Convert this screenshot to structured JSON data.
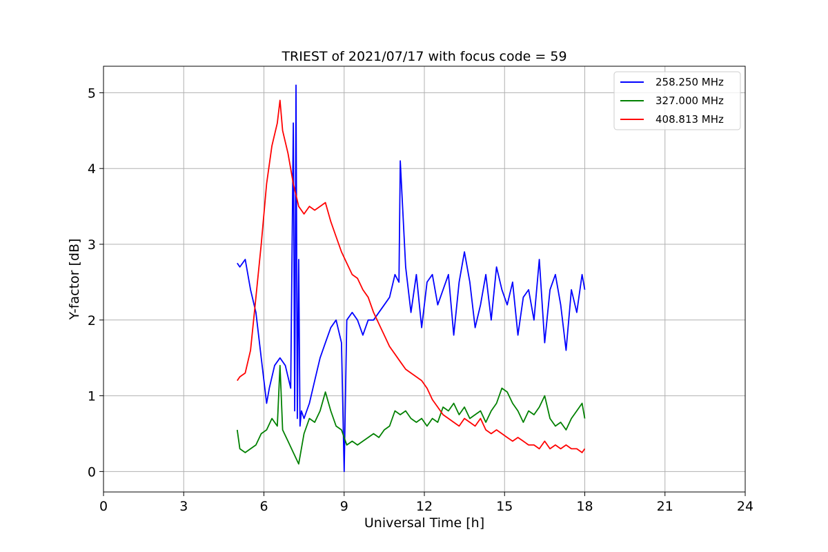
{
  "chart_data": {
    "type": "line",
    "title": "TRIEST of 2021/07/17 with focus code = 59",
    "xlabel": "Universal Time [h]",
    "ylabel": "Y-factor [dB]",
    "xlim": [
      0,
      24
    ],
    "ylim": [
      -0.27,
      5.35
    ],
    "xticks": [
      0,
      3,
      6,
      9,
      12,
      15,
      18,
      21,
      24
    ],
    "xtick_labels": [
      "0",
      "3",
      "6",
      "9",
      "12",
      "15",
      "18",
      "21",
      "24"
    ],
    "yticks": [
      0,
      1,
      2,
      3,
      4,
      5
    ],
    "ytick_labels": [
      "0",
      "1",
      "2",
      "3",
      "4",
      "5"
    ],
    "grid": true,
    "legend_position": "top-right",
    "series": [
      {
        "name": "258.250 MHz",
        "color": "#0000ff",
        "x": [
          5.0,
          5.1,
          5.3,
          5.5,
          5.7,
          5.9,
          6.1,
          6.2,
          6.4,
          6.6,
          6.8,
          7.0,
          7.1,
          7.15,
          7.2,
          7.25,
          7.3,
          7.35,
          7.4,
          7.5,
          7.7,
          7.9,
          8.1,
          8.3,
          8.5,
          8.7,
          8.9,
          9.0,
          9.1,
          9.3,
          9.5,
          9.7,
          9.9,
          10.1,
          10.3,
          10.5,
          10.7,
          10.9,
          11.05,
          11.1,
          11.3,
          11.5,
          11.7,
          11.9,
          12.1,
          12.3,
          12.5,
          12.7,
          12.9,
          13.1,
          13.3,
          13.5,
          13.7,
          13.9,
          14.1,
          14.3,
          14.5,
          14.7,
          14.9,
          15.1,
          15.3,
          15.5,
          15.7,
          15.9,
          16.1,
          16.3,
          16.5,
          16.7,
          16.9,
          17.1,
          17.3,
          17.5,
          17.7,
          17.9,
          18.0
        ],
        "y": [
          2.75,
          2.7,
          2.8,
          2.4,
          2.1,
          1.5,
          0.9,
          1.1,
          1.4,
          1.5,
          1.4,
          1.1,
          4.6,
          0.8,
          5.1,
          0.7,
          2.8,
          0.6,
          0.8,
          0.7,
          0.9,
          1.2,
          1.5,
          1.7,
          1.9,
          2.0,
          1.7,
          0.0,
          2.0,
          2.1,
          2.0,
          1.8,
          2.0,
          2.0,
          2.1,
          2.2,
          2.3,
          2.6,
          2.5,
          4.1,
          2.7,
          2.1,
          2.6,
          1.9,
          2.5,
          2.6,
          2.2,
          2.4,
          2.6,
          1.8,
          2.5,
          2.9,
          2.5,
          1.9,
          2.2,
          2.6,
          2.0,
          2.7,
          2.4,
          2.2,
          2.5,
          1.8,
          2.3,
          2.4,
          2.0,
          2.8,
          1.7,
          2.4,
          2.6,
          2.2,
          1.6,
          2.4,
          2.1,
          2.6,
          2.4
        ]
      },
      {
        "name": "327.000 MHz",
        "color": "#008000",
        "x": [
          5.0,
          5.1,
          5.3,
          5.5,
          5.7,
          5.9,
          6.1,
          6.3,
          6.5,
          6.6,
          6.7,
          6.9,
          7.1,
          7.3,
          7.5,
          7.7,
          7.9,
          8.1,
          8.3,
          8.5,
          8.7,
          8.9,
          9.1,
          9.3,
          9.5,
          9.7,
          9.9,
          10.1,
          10.3,
          10.5,
          10.7,
          10.9,
          11.1,
          11.3,
          11.5,
          11.7,
          11.9,
          12.1,
          12.3,
          12.5,
          12.7,
          12.9,
          13.1,
          13.3,
          13.5,
          13.7,
          13.9,
          14.1,
          14.3,
          14.5,
          14.7,
          14.9,
          15.1,
          15.3,
          15.5,
          15.7,
          15.9,
          16.1,
          16.3,
          16.5,
          16.7,
          16.9,
          17.1,
          17.3,
          17.5,
          17.7,
          17.9,
          18.0
        ],
        "y": [
          0.55,
          0.3,
          0.25,
          0.3,
          0.35,
          0.5,
          0.55,
          0.7,
          0.6,
          1.4,
          0.55,
          0.4,
          0.25,
          0.1,
          0.5,
          0.7,
          0.65,
          0.8,
          1.05,
          0.8,
          0.6,
          0.55,
          0.35,
          0.4,
          0.35,
          0.4,
          0.45,
          0.5,
          0.45,
          0.55,
          0.6,
          0.8,
          0.75,
          0.8,
          0.7,
          0.65,
          0.7,
          0.6,
          0.7,
          0.65,
          0.85,
          0.8,
          0.9,
          0.75,
          0.85,
          0.7,
          0.75,
          0.8,
          0.65,
          0.8,
          0.9,
          1.1,
          1.05,
          0.9,
          0.8,
          0.65,
          0.8,
          0.75,
          0.85,
          1.0,
          0.7,
          0.6,
          0.65,
          0.55,
          0.7,
          0.8,
          0.9,
          0.7
        ]
      },
      {
        "name": "408.813 MHz",
        "color": "#ff0000",
        "x": [
          5.0,
          5.1,
          5.3,
          5.5,
          5.7,
          5.9,
          6.1,
          6.3,
          6.5,
          6.6,
          6.7,
          6.9,
          7.1,
          7.3,
          7.5,
          7.7,
          7.9,
          8.1,
          8.3,
          8.5,
          8.7,
          8.9,
          9.1,
          9.3,
          9.5,
          9.7,
          9.9,
          10.1,
          10.3,
          10.5,
          10.7,
          10.9,
          11.1,
          11.3,
          11.5,
          11.7,
          11.9,
          12.1,
          12.3,
          12.5,
          12.7,
          12.9,
          13.1,
          13.3,
          13.5,
          13.7,
          13.9,
          14.1,
          14.3,
          14.5,
          14.7,
          14.9,
          15.1,
          15.3,
          15.5,
          15.7,
          15.9,
          16.1,
          16.3,
          16.5,
          16.7,
          16.9,
          17.1,
          17.3,
          17.5,
          17.7,
          17.9,
          18.0
        ],
        "y": [
          1.2,
          1.25,
          1.3,
          1.6,
          2.3,
          3.0,
          3.8,
          4.3,
          4.6,
          4.9,
          4.5,
          4.2,
          3.8,
          3.5,
          3.4,
          3.5,
          3.45,
          3.5,
          3.55,
          3.3,
          3.1,
          2.9,
          2.75,
          2.6,
          2.55,
          2.4,
          2.3,
          2.1,
          1.95,
          1.8,
          1.65,
          1.55,
          1.45,
          1.35,
          1.3,
          1.25,
          1.2,
          1.1,
          0.95,
          0.85,
          0.75,
          0.7,
          0.65,
          0.6,
          0.7,
          0.65,
          0.6,
          0.7,
          0.55,
          0.5,
          0.55,
          0.5,
          0.45,
          0.4,
          0.45,
          0.4,
          0.35,
          0.35,
          0.3,
          0.4,
          0.3,
          0.35,
          0.3,
          0.35,
          0.3,
          0.3,
          0.25,
          0.3
        ]
      }
    ]
  }
}
